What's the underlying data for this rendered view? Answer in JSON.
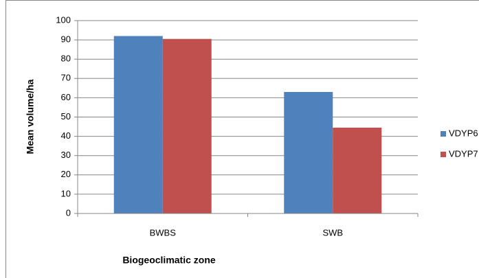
{
  "chart_data": {
    "type": "bar",
    "x_label": "Biogeoclimatic zone",
    "y_label": "Mean volume/ha",
    "categories": [
      "BWBS",
      "SWB"
    ],
    "series": [
      {
        "name": "VDYP6",
        "color": "#4f81bd",
        "values": [
          92,
          63
        ]
      },
      {
        "name": "VDYP7",
        "color": "#c0504d",
        "values": [
          90.5,
          44.5
        ]
      }
    ],
    "ylim": [
      0,
      100
    ],
    "yticks": [
      0,
      10,
      20,
      30,
      40,
      50,
      60,
      70,
      80,
      90,
      100
    ],
    "grid": true
  }
}
